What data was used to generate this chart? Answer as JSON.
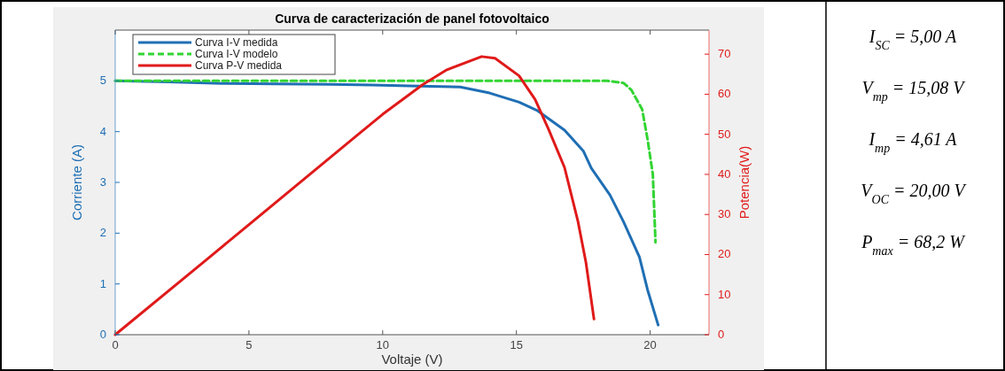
{
  "chart_data": {
    "type": "line",
    "title": "Curva de caracterización de panel fotovoltaico",
    "xlabel": "Voltaje (V)",
    "ylabel": "Corriente (A)",
    "y2label": "Potencia(W)",
    "xlim": [
      0,
      22.2
    ],
    "xticks": [
      0,
      5,
      10,
      15,
      20
    ],
    "ylim": [
      0,
      6
    ],
    "yticks": [
      0,
      1,
      2,
      3,
      4,
      5
    ],
    "y2lim": [
      0,
      76
    ],
    "y2ticks": [
      0,
      10,
      20,
      30,
      40,
      50,
      60,
      70
    ],
    "legend": "top left",
    "grid": false,
    "annotations": [
      "I$_{SC}$ = 5,00 A",
      "V$_{mp}$ = 15,08 V",
      "I$_{mp}$ = 4,61 A",
      "V$_{OC}$ = 20,00 V",
      "P$_{max}$ = 68,2 W"
    ],
    "series": [
      {
        "name": "Curva I-V medida",
        "color": "#1f6fb4",
        "line_style": "solid",
        "x": [
          0,
          2,
          4,
          6,
          8,
          9.6,
          11,
          12.9,
          14,
          15.1,
          15.8,
          16.8,
          17.5,
          17.8,
          18.5,
          19,
          19.6,
          19.9,
          20.3
        ],
        "values": [
          5,
          4.98,
          4.95,
          4.94,
          4.93,
          4.92,
          4.9,
          4.88,
          4.76,
          4.58,
          4.41,
          4.03,
          3.62,
          3.28,
          2.75,
          2.23,
          1.53,
          0.89,
          0.19
        ]
      },
      {
        "name": "Curva I-V modelo",
        "color": "#33d433",
        "line_style": "dashed",
        "x": [
          0,
          5,
          10,
          15,
          18.4,
          19,
          19.3,
          19.7,
          19.9,
          20.1,
          20.2
        ],
        "values": [
          5,
          5,
          5,
          5,
          5,
          4.96,
          4.82,
          4.44,
          3.86,
          3.16,
          1.82
        ]
      },
      {
        "name": "Curva P-V medida",
        "color": "#e01a1a",
        "line_style": "solid",
        "axis": "y2",
        "x": [
          0,
          3.5,
          9,
          10,
          11.5,
          12.4,
          13.7,
          14.2,
          15.1,
          15.7,
          16.2,
          16.8,
          17.3,
          17.6,
          17.9
        ],
        "values": [
          0,
          19.2,
          49.5,
          55,
          62.4,
          66.1,
          69.4,
          69,
          64.6,
          58.7,
          51.3,
          41.7,
          28.3,
          18,
          3.9
        ]
      }
    ]
  }
}
